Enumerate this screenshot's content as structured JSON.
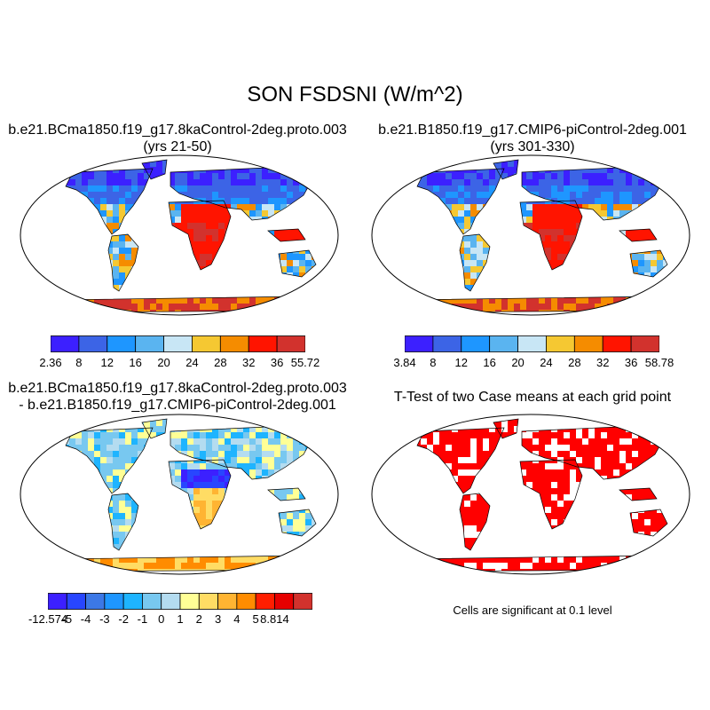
{
  "main_title": "SON FSDSNI (W/m^2)",
  "panels": [
    {
      "id": "case1",
      "title_line1": "b.e21.BCma1850.f19_g17.8kaControl-2deg.proto.003",
      "title_line2": "(yrs 21-50)",
      "colorbar": {
        "labels": [
          "2.36",
          "8",
          "12",
          "16",
          "20",
          "24",
          "28",
          "32",
          "36",
          "55.72"
        ],
        "colors": [
          "#3c20ff",
          "#3c64e6",
          "#1e96ff",
          "#5ab4f0",
          "#c8e6f5",
          "#f5c832",
          "#f58c00",
          "#ff1400",
          "#d2322d"
        ]
      }
    },
    {
      "id": "case2",
      "title_line1": "b.e21.B1850.f19_g17.CMIP6-piControl-2deg.001",
      "title_line2": "(yrs 301-330)",
      "colorbar": {
        "labels": [
          "3.84",
          "8",
          "12",
          "16",
          "20",
          "24",
          "28",
          "32",
          "36",
          "58.78"
        ],
        "colors": [
          "#3c20ff",
          "#3c64e6",
          "#1e96ff",
          "#5ab4f0",
          "#c8e6f5",
          "#f5c832",
          "#f58c00",
          "#ff1400",
          "#d2322d"
        ]
      }
    },
    {
      "id": "diff",
      "title_line1": "b.e21.BCma1850.f19_g17.8kaControl-2deg.proto.003",
      "title_line2": "- b.e21.B1850.f19_g17.CMIP6-piControl-2deg.001",
      "colorbar": {
        "labels": [
          "-12.574",
          "-5",
          "-4",
          "-3",
          "-2",
          "-1",
          "0",
          "1",
          "2",
          "3",
          "4",
          "5",
          "8.814"
        ],
        "colors": [
          "#3c20ff",
          "#2846ff",
          "#3c78e6",
          "#1e96ff",
          "#1eb4ff",
          "#78c8f0",
          "#b4dcf0",
          "#ffff96",
          "#ffdc64",
          "#ffb432",
          "#ff8c00",
          "#ff1e00",
          "#e60000",
          "#d2322d"
        ]
      }
    },
    {
      "id": "ttest",
      "title_line1": "T-Test of two Case means at each grid point",
      "note": "Cells are significant at 0.1 level",
      "sig_color": "#ff0000"
    }
  ],
  "colors": {
    "land_case_high": "#ff1400",
    "land_case_mid": "#5ab4f0",
    "land_case_low": "#3c64e6",
    "land_diff_neutral": "#78c8f0",
    "land_diff_pos": "#ffb432",
    "land_diff_neg": "#3c20ff"
  }
}
